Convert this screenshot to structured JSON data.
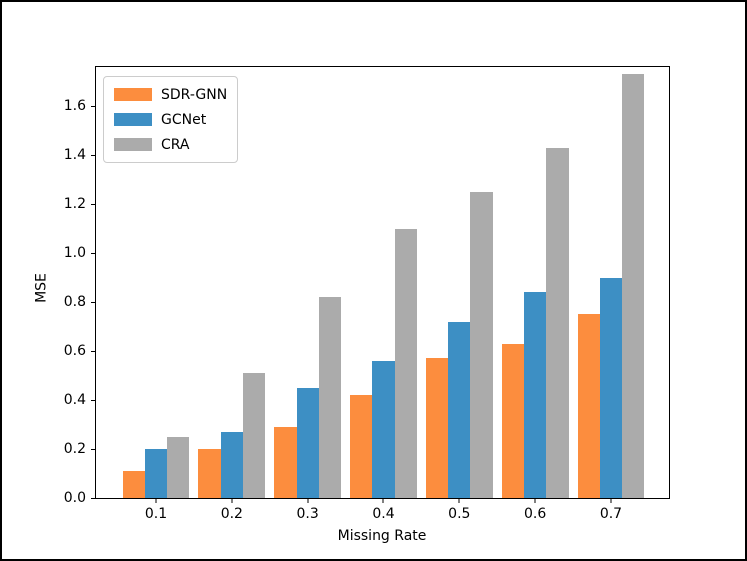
{
  "figure": {
    "background": "#ffffff",
    "frame_color": "#000000"
  },
  "chart_data": {
    "type": "bar",
    "title": "",
    "xlabel": "Missing Rate",
    "ylabel": "MSE",
    "categories": [
      "0.1",
      "0.2",
      "0.3",
      "0.4",
      "0.5",
      "0.6",
      "0.7"
    ],
    "series": [
      {
        "name": "SDR-GNN",
        "color": "#fc8d3e",
        "values": [
          0.11,
          0.2,
          0.29,
          0.42,
          0.57,
          0.63,
          0.75
        ]
      },
      {
        "name": "GCNet",
        "color": "#3d8fc4",
        "values": [
          0.2,
          0.27,
          0.45,
          0.56,
          0.72,
          0.84,
          0.9
        ]
      },
      {
        "name": "CRA",
        "color": "#ababab",
        "values": [
          0.25,
          0.51,
          0.82,
          1.1,
          1.25,
          1.43,
          1.73
        ]
      }
    ],
    "yticks": [
      "0.0",
      "0.2",
      "0.4",
      "0.6",
      "0.8",
      "1.0",
      "1.2",
      "1.4",
      "1.6"
    ],
    "ylim": [
      0,
      1.76
    ],
    "grid": false,
    "legend": {
      "position": "upper left"
    }
  }
}
